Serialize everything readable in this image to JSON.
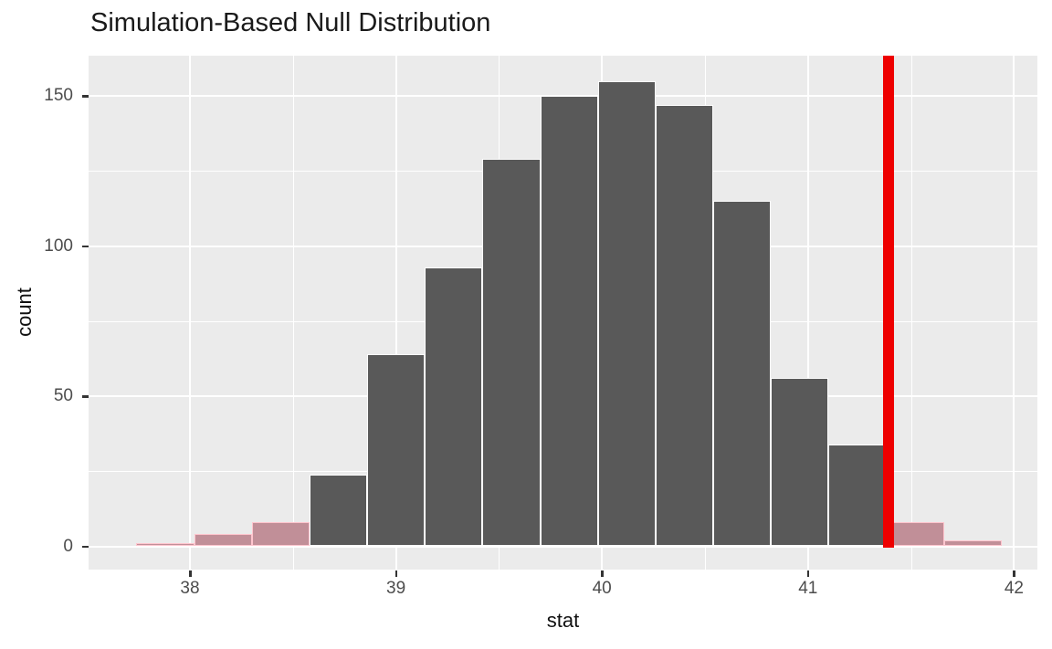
{
  "title": "Simulation-Based Null Distribution",
  "chart_data": {
    "type": "bar",
    "subtype": "histogram",
    "title": "Simulation-Based Null Distribution",
    "xlabel": "stat",
    "ylabel": "count",
    "legend": "none",
    "grid": "on",
    "x_ticks": [
      38,
      39,
      40,
      41,
      42
    ],
    "y_ticks": [
      0,
      50,
      100,
      150
    ],
    "x_minor_ticks": [
      38.5,
      39.5,
      40.5,
      41.5
    ],
    "y_minor_ticks": [
      25,
      75,
      125
    ],
    "xlim": [
      37.51,
      42.11
    ],
    "ylim": [
      -7.8,
      163.4
    ],
    "bin_width": 0.28,
    "observed_stat": 41.39,
    "shading": "two-sided tail bins shaded pink",
    "bins": [
      {
        "x0": 37.74,
        "x1": 38.02,
        "count": 1,
        "region": "tail"
      },
      {
        "x0": 38.02,
        "x1": 38.3,
        "count": 4,
        "region": "tail"
      },
      {
        "x0": 38.3,
        "x1": 38.58,
        "count": 8,
        "region": "tail"
      },
      {
        "x0": 38.58,
        "x1": 38.86,
        "count": 24,
        "region": "null"
      },
      {
        "x0": 38.86,
        "x1": 39.14,
        "count": 64,
        "region": "null"
      },
      {
        "x0": 39.14,
        "x1": 39.42,
        "count": 93,
        "region": "null"
      },
      {
        "x0": 39.42,
        "x1": 39.7,
        "count": 129,
        "region": "null"
      },
      {
        "x0": 39.7,
        "x1": 39.98,
        "count": 150,
        "region": "null"
      },
      {
        "x0": 39.98,
        "x1": 40.26,
        "count": 155,
        "region": "null"
      },
      {
        "x0": 40.26,
        "x1": 40.54,
        "count": 147,
        "region": "null"
      },
      {
        "x0": 40.54,
        "x1": 40.82,
        "count": 115,
        "region": "null"
      },
      {
        "x0": 40.82,
        "x1": 41.1,
        "count": 56,
        "region": "null"
      },
      {
        "x0": 41.1,
        "x1": 41.38,
        "count": 34,
        "region": "null"
      },
      {
        "x0": 41.38,
        "x1": 41.66,
        "count": 8,
        "region": "tail"
      },
      {
        "x0": 41.66,
        "x1": 41.94,
        "count": 2,
        "region": "tail"
      }
    ],
    "colors": {
      "bar_fill": "#595959",
      "bar_border": "#FFFFFF",
      "tail_fill": "#C18F98",
      "tail_border": "#FFC5CE",
      "observed_line": "#EE0000",
      "panel_background": "#EBEBEB",
      "gridline": "#FFFFFF",
      "tick_label": "#4D4D4D",
      "axis_title": "#111111",
      "plot_title": "#1A1A1A"
    }
  }
}
